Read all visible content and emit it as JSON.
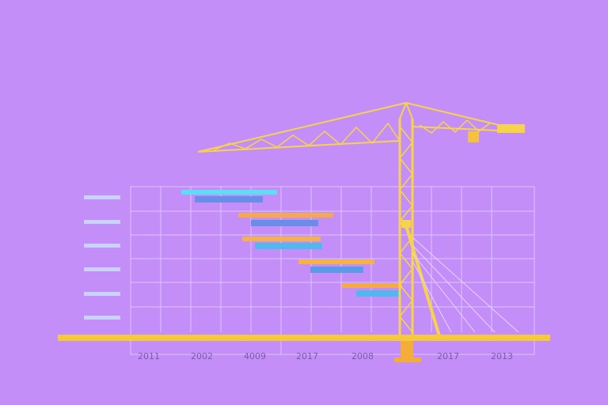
{
  "axis_labels": [
    "2011",
    "2002",
    "4009",
    "2017",
    "2008",
    "2017",
    "2013"
  ]
}
